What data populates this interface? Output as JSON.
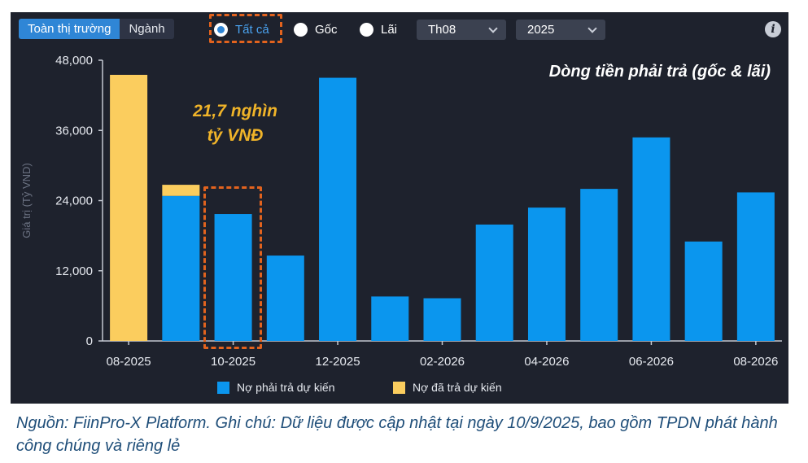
{
  "toolbar": {
    "tabs": [
      {
        "label": "Toàn thị trường",
        "active": true
      },
      {
        "label": "Ngành",
        "active": false
      }
    ],
    "radios": [
      {
        "label": "Tất cả",
        "selected": true
      },
      {
        "label": "Gốc",
        "selected": false
      },
      {
        "label": "Lãi",
        "selected": false
      }
    ],
    "month_select": "Th08",
    "year_select": "2025",
    "info_icon": "i"
  },
  "annotations": {
    "title": "Dòng tiền phải trả (gốc & lãi)",
    "callout_line1": "21,7 nghìn",
    "callout_line2": "tỷ VNĐ"
  },
  "caption": "Nguồn: FiinPro-X Platform. Ghi chú: Dữ liệu được cập nhật tại ngày 10/9/2025, bao gồm TPDN phát hành công chúng và riêng lẻ",
  "colors": {
    "blue": "#0b96ee",
    "yellow": "#fbcd5e",
    "highlight": "#e2631e",
    "panel": "#1e222d"
  },
  "chart_data": {
    "type": "bar",
    "stacked": true,
    "ylabel": "Giá trị (Tỷ VND)",
    "ylim": [
      0,
      48000
    ],
    "yticks": [
      "0",
      "12,000",
      "24,000",
      "36,000",
      "48,000"
    ],
    "categories": [
      "08-2025",
      "09-2025",
      "10-2025",
      "11-2025",
      "12-2025",
      "01-2026",
      "02-2026",
      "03-2026",
      "04-2026",
      "05-2026",
      "06-2026",
      "07-2026",
      "08-2026"
    ],
    "xtick_labels": [
      "08-2025",
      "",
      "10-2025",
      "",
      "12-2025",
      "",
      "02-2026",
      "",
      "04-2026",
      "",
      "06-2026",
      "",
      "08-2026"
    ],
    "series": [
      {
        "name": "Nợ phải trả dự kiến",
        "color": "#0b96ee",
        "values": [
          0,
          24800,
          21700,
          14600,
          45000,
          7600,
          7300,
          19900,
          22800,
          26000,
          34800,
          17000,
          25400
        ]
      },
      {
        "name": "Nợ đã trả dự kiến",
        "color": "#fbcd5e",
        "values": [
          45500,
          1900,
          0,
          0,
          0,
          0,
          0,
          0,
          0,
          0,
          0,
          0,
          0
        ]
      }
    ],
    "legend_position": "bottom",
    "highlighted_category": "10-2025"
  }
}
